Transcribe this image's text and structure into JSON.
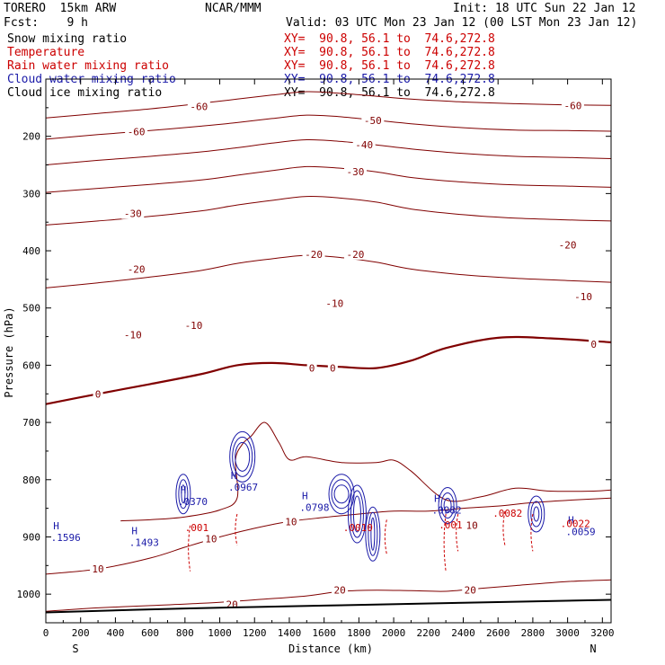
{
  "header": {
    "model": "TORERO  15km ARW",
    "center": "NCAR/MMM",
    "init": "Init: 18 UTC Sun 22 Jan 12",
    "fcst": "Fcst:    9 h",
    "valid": "Valid: 03 UTC Mon 23 Jan 12 (00 LST Mon 23 Jan 12)"
  },
  "fields": [
    {
      "name": "Snow mixing ratio",
      "color": "#000000",
      "xy": "XY=  90.8, 56.1 to  74.6,272.8",
      "xy_color": "#cc0000"
    },
    {
      "name": "Temperature",
      "color": "#cc0000",
      "xy": "XY=  90.8, 56.1 to  74.6,272.8",
      "xy_color": "#cc0000"
    },
    {
      "name": "Rain water mixing ratio",
      "color": "#cc0000",
      "xy": "XY=  90.8, 56.1 to  74.6,272.8",
      "xy_color": "#cc0000"
    },
    {
      "name": "Cloud water mixing ratio",
      "color": "#1a1aa8",
      "xy": "XY=  90.8, 56.1 to  74.6,272.8",
      "xy_color": "#1a1aa8"
    },
    {
      "name": "Cloud ice mixing ratio",
      "color": "#000000",
      "xy": "XY=  90.8, 56.1 to  74.6,272.8",
      "xy_color": "#000000"
    }
  ],
  "chart_data": {
    "type": "line",
    "xlabel": "Distance (km)",
    "ylabel": "Pressure (hPa)",
    "xlim": [
      0,
      3250
    ],
    "ylim": [
      1050,
      100
    ],
    "x_ticks": [
      0,
      200,
      400,
      600,
      800,
      1000,
      1200,
      1400,
      1600,
      1800,
      2000,
      2200,
      2400,
      2600,
      2800,
      3000,
      3200
    ],
    "y_ticks": [
      200,
      300,
      400,
      500,
      600,
      700,
      800,
      900,
      1000
    ],
    "endpoints": {
      "left": "S",
      "right": "N"
    },
    "colors": {
      "temperature": "#800000",
      "cloud_water": "#1a1aa8",
      "rain": "#cc0000",
      "ground": "#000000"
    },
    "temperature_contours": [
      {
        "level": -60,
        "label": "-60",
        "labels": [
          [
            520,
            192
          ],
          [
            880,
            148
          ],
          [
            3030,
            146
          ]
        ],
        "points": [
          [
            0,
            168
          ],
          [
            300,
            160
          ],
          [
            600,
            152
          ],
          [
            900,
            142
          ],
          [
            1100,
            135
          ],
          [
            1300,
            128
          ],
          [
            1500,
            122
          ],
          [
            1700,
            125
          ],
          [
            1900,
            130
          ],
          [
            2100,
            135
          ],
          [
            2400,
            140
          ],
          [
            2700,
            143
          ],
          [
            3000,
            145
          ],
          [
            3250,
            146
          ]
        ]
      },
      {
        "level": -50,
        "label": "-50",
        "labels": [
          [
            1880,
            172
          ]
        ],
        "points": [
          [
            0,
            205
          ],
          [
            300,
            197
          ],
          [
            600,
            190
          ],
          [
            900,
            182
          ],
          [
            1100,
            176
          ],
          [
            1300,
            169
          ],
          [
            1500,
            163
          ],
          [
            1700,
            166
          ],
          [
            1900,
            172
          ],
          [
            2100,
            178
          ],
          [
            2400,
            185
          ],
          [
            2700,
            189
          ],
          [
            3000,
            190
          ],
          [
            3250,
            191
          ]
        ]
      },
      {
        "level": -40,
        "label": "-40",
        "labels": [
          [
            1830,
            215
          ]
        ],
        "points": [
          [
            0,
            250
          ],
          [
            300,
            242
          ],
          [
            600,
            235
          ],
          [
            900,
            227
          ],
          [
            1100,
            220
          ],
          [
            1300,
            212
          ],
          [
            1500,
            206
          ],
          [
            1700,
            209
          ],
          [
            1900,
            215
          ],
          [
            2100,
            222
          ],
          [
            2400,
            230
          ],
          [
            2700,
            235
          ],
          [
            3000,
            237
          ],
          [
            3250,
            239
          ]
        ]
      },
      {
        "level": -30,
        "label": "-30",
        "labels": [
          [
            1780,
            262
          ],
          [
            500,
            335
          ]
        ],
        "points": [
          [
            0,
            298
          ],
          [
            300,
            291
          ],
          [
            600,
            284
          ],
          [
            900,
            276
          ],
          [
            1100,
            268
          ],
          [
            1300,
            260
          ],
          [
            1500,
            253
          ],
          [
            1700,
            256
          ],
          [
            1900,
            262
          ],
          [
            2100,
            272
          ],
          [
            2400,
            280
          ],
          [
            2700,
            285
          ],
          [
            3000,
            287
          ],
          [
            3250,
            289
          ]
        ]
      },
      {
        "level": -20,
        "label": "-20",
        "labels": [
          [
            520,
            432
          ],
          [
            1540,
            406
          ],
          [
            1780,
            406
          ],
          [
            3000,
            390
          ]
        ],
        "points": [
          [
            0,
            355
          ],
          [
            300,
            348
          ],
          [
            600,
            340
          ],
          [
            900,
            330
          ],
          [
            1100,
            320
          ],
          [
            1300,
            312
          ],
          [
            1500,
            305
          ],
          [
            1700,
            308
          ],
          [
            1900,
            315
          ],
          [
            2100,
            327
          ],
          [
            2400,
            337
          ],
          [
            2700,
            343
          ],
          [
            3000,
            346
          ],
          [
            3250,
            348
          ]
        ]
      },
      {
        "level": -10,
        "label": "-10",
        "labels": [
          [
            500,
            547
          ],
          [
            850,
            530
          ],
          [
            1660,
            492
          ],
          [
            3090,
            480
          ]
        ],
        "points": [
          [
            0,
            465
          ],
          [
            300,
            456
          ],
          [
            600,
            446
          ],
          [
            900,
            434
          ],
          [
            1100,
            422
          ],
          [
            1300,
            414
          ],
          [
            1500,
            408
          ],
          [
            1700,
            412
          ],
          [
            1900,
            420
          ],
          [
            2100,
            432
          ],
          [
            2400,
            442
          ],
          [
            2700,
            448
          ],
          [
            3000,
            452
          ],
          [
            3250,
            455
          ]
        ]
      },
      {
        "level": 0,
        "label": "0",
        "labels": [
          [
            300,
            650
          ],
          [
            1530,
            605
          ],
          [
            1650,
            605
          ],
          [
            3150,
            563
          ]
        ],
        "bold": true,
        "points": [
          [
            0,
            668
          ],
          [
            300,
            650
          ],
          [
            600,
            633
          ],
          [
            900,
            615
          ],
          [
            1100,
            600
          ],
          [
            1300,
            596
          ],
          [
            1500,
            600
          ],
          [
            1700,
            603
          ],
          [
            1900,
            605
          ],
          [
            2100,
            592
          ],
          [
            2300,
            570
          ],
          [
            2600,
            552
          ],
          [
            2900,
            553
          ],
          [
            3250,
            560
          ]
        ]
      },
      {
        "level": 10,
        "label": "10",
        "labels": [
          [
            1410,
            873
          ],
          [
            950,
            903
          ],
          [
            300,
            956
          ],
          [
            2450,
            880
          ]
        ],
        "points": [
          [
            0,
            965
          ],
          [
            300,
            956
          ],
          [
            600,
            937
          ],
          [
            800,
            918
          ],
          [
            1000,
            900
          ],
          [
            1200,
            885
          ],
          [
            1400,
            873
          ],
          [
            1600,
            866
          ],
          [
            1800,
            860
          ],
          [
            2000,
            855
          ],
          [
            2200,
            855
          ],
          [
            2400,
            850
          ],
          [
            2600,
            846
          ],
          [
            2800,
            840
          ],
          [
            3000,
            836
          ],
          [
            3250,
            832
          ]
        ]
      },
      {
        "level": 20,
        "label": "20",
        "labels": [
          [
            1070,
            1018
          ],
          [
            1690,
            993
          ],
          [
            2440,
            993
          ]
        ],
        "points": [
          [
            0,
            1030
          ],
          [
            300,
            1024
          ],
          [
            600,
            1020
          ],
          [
            900,
            1016
          ],
          [
            1200,
            1010
          ],
          [
            1500,
            1003
          ],
          [
            1700,
            995
          ],
          [
            1900,
            993
          ],
          [
            2100,
            994
          ],
          [
            2300,
            995
          ],
          [
            2500,
            990
          ],
          [
            2700,
            985
          ],
          [
            3000,
            978
          ],
          [
            3250,
            975
          ]
        ]
      }
    ],
    "moist_contour": {
      "points": [
        [
          430,
          872
        ],
        [
          600,
          870
        ],
        [
          800,
          865
        ],
        [
          1000,
          853
        ],
        [
          1100,
          832
        ],
        [
          1090,
          766
        ],
        [
          1130,
          738
        ],
        [
          1180,
          724
        ],
        [
          1260,
          700
        ],
        [
          1340,
          735
        ],
        [
          1400,
          765
        ],
        [
          1500,
          760
        ],
        [
          1700,
          770
        ],
        [
          1900,
          770
        ],
        [
          2000,
          766
        ],
        [
          2100,
          785
        ],
        [
          2300,
          835
        ],
        [
          2500,
          830
        ],
        [
          2700,
          815
        ],
        [
          2900,
          820
        ],
        [
          3150,
          820
        ],
        [
          3250,
          818
        ]
      ]
    },
    "ground": {
      "points": [
        [
          0,
          1032
        ],
        [
          800,
          1025
        ],
        [
          1600,
          1020
        ],
        [
          2400,
          1015
        ],
        [
          3250,
          1010
        ]
      ]
    },
    "cloud_water_markers": [
      {
        "x": 60,
        "p": 893,
        "label": ".1596"
      },
      {
        "x": 510,
        "p": 902,
        "label": ".1493"
      },
      {
        "x": 790,
        "p": 830,
        "label": ".0370"
      },
      {
        "x": 1080,
        "p": 805,
        "label": ".0967"
      },
      {
        "x": 1490,
        "p": 840,
        "label": ".0798"
      },
      {
        "x": 2250,
        "p": 845,
        "label": ".0982"
      },
      {
        "x": 3020,
        "p": 883,
        "label": ".0059"
      }
    ],
    "rain_markers": [
      {
        "x": 830,
        "p": 890,
        "label": ".001"
      },
      {
        "x": 1740,
        "p": 890,
        "label": ".0010"
      },
      {
        "x": 2290,
        "p": 885,
        "label": ".001"
      },
      {
        "x": 2600,
        "p": 865,
        "label": ".0082"
      },
      {
        "x": 2990,
        "p": 883,
        "label": ".0022"
      }
    ]
  }
}
